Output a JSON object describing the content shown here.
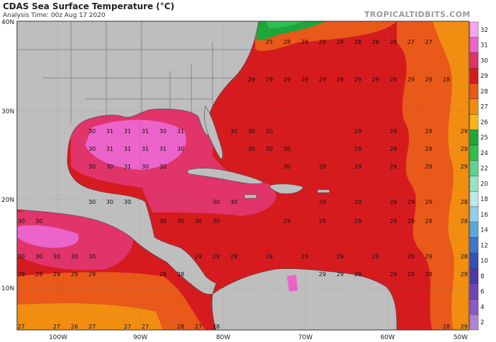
{
  "title": "CDAS Sea Surface Temperature (°C)",
  "subtitle": "Analysis Time: 00z Aug 17 2020",
  "brand": "TROPICALTIDBITS.COM",
  "lat_labels": [
    "40N",
    "30N",
    "20N",
    "10N"
  ],
  "lon_labels": [
    "100W",
    "90W",
    "80W",
    "70W",
    "60W",
    "50W"
  ],
  "colorbar": {
    "labels": [
      "32",
      "31",
      "30",
      "29",
      "28",
      "27",
      "26",
      "25",
      "24",
      "22",
      "20",
      "18",
      "16",
      "14",
      "12",
      "10",
      "8",
      "6",
      "4",
      "2"
    ],
    "colors": [
      "#f5a6f0",
      "#ec63c9",
      "#e0346a",
      "#d61b1f",
      "#e8591a",
      "#f18d10",
      "#f7b715",
      "#1ea63b",
      "#2fbf4f",
      "#5fd392",
      "#98e2c5",
      "#bde9e8",
      "#91cfe8",
      "#5aa7de",
      "#3f76cc",
      "#3551b8",
      "#4a3aa6",
      "#6a46b8",
      "#8a5ac8",
      "#ad84d8"
    ]
  },
  "sst_labels": {
    "row_40": [
      "25",
      "28",
      "28",
      "29",
      "29",
      "28",
      "28",
      "28",
      "27",
      "27"
    ],
    "row_33": [
      "29",
      "29",
      "29",
      "29",
      "29",
      "29",
      "29",
      "29",
      "29",
      "29",
      "29",
      "28"
    ],
    "row_28": [
      "30",
      "31",
      "31",
      "31",
      "30",
      "31",
      "30",
      "30",
      "30",
      "29",
      "29",
      "29",
      "29"
    ],
    "row_26": [
      "30",
      "31",
      "31",
      "31",
      "31",
      "30",
      "30",
      "30",
      "30",
      "29",
      "29",
      "29",
      "29"
    ],
    "row_24": [
      "30",
      "30",
      "31",
      "30",
      "30",
      "30",
      "29",
      "29",
      "29",
      "29",
      "29"
    ],
    "row_20": [
      "30",
      "30",
      "30",
      "30",
      "30",
      "29",
      "29",
      "29",
      "29",
      "29",
      "28"
    ],
    "row_17": [
      "30",
      "30",
      "30",
      "30",
      "30",
      "30",
      "29",
      "29",
      "29",
      "29",
      "29",
      "29",
      "28"
    ],
    "row_13": [
      "30",
      "30",
      "30",
      "30",
      "30",
      "29",
      "29",
      "29",
      "29",
      "29",
      "29",
      "29",
      "29",
      "29",
      "28"
    ],
    "row_10": [
      "29",
      "29",
      "29",
      "29",
      "29",
      "28",
      "28",
      "29",
      "29",
      "29",
      "29",
      "29",
      "29",
      "29"
    ],
    "row_6": [
      "27",
      "27",
      "26",
      "27",
      "27",
      "27",
      "28",
      "27",
      "28",
      "28",
      "29"
    ]
  }
}
